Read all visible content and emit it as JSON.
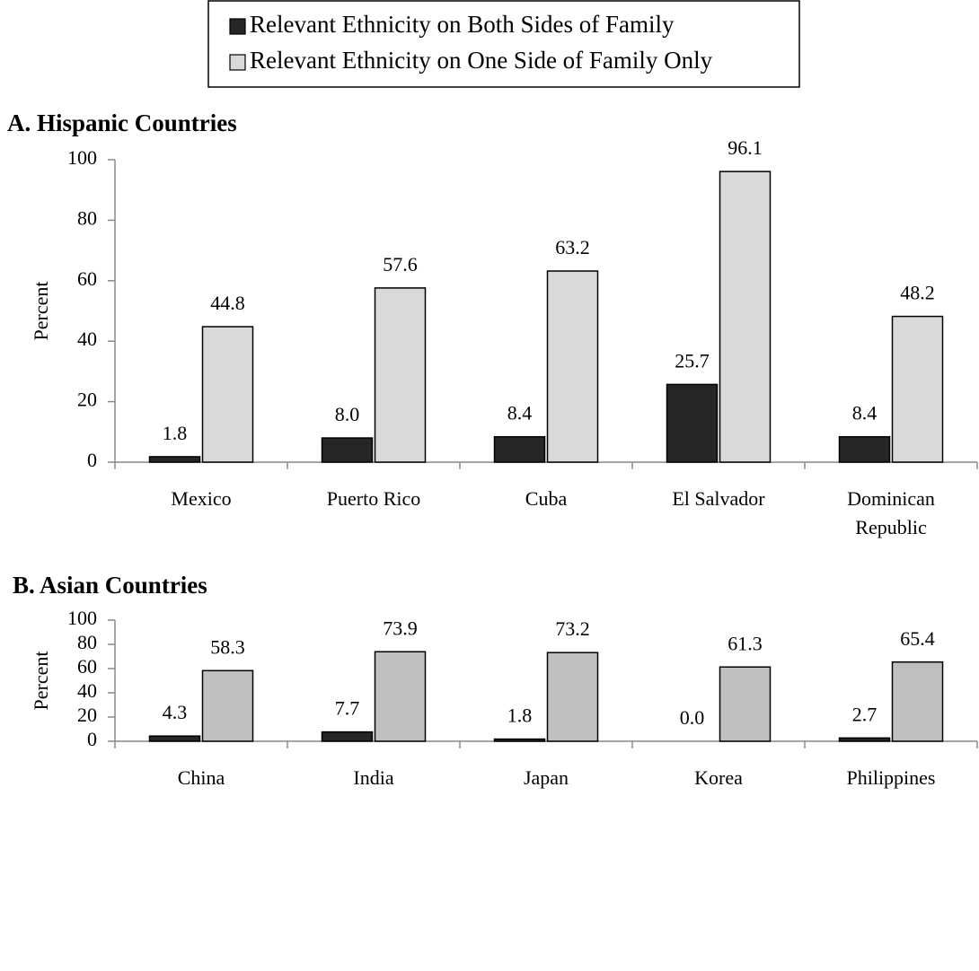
{
  "chart_data": [
    {
      "type": "bar",
      "title": "A. Hispanic Countries",
      "ylabel": "Percent",
      "categories": [
        "Mexico",
        "Puerto Rico",
        "Cuba",
        "El Salvador",
        "Dominican Republic"
      ],
      "series": [
        {
          "name": "Relevant Ethnicity on Both Sides of Family",
          "color": "#262626",
          "values": [
            1.8,
            8.0,
            8.4,
            25.7,
            8.4
          ],
          "value_labels": [
            "1.8",
            "8.0",
            "8.4",
            "25.7",
            "8.4"
          ]
        },
        {
          "name": "Relevant Ethnicity on One Side of Family Only",
          "color": "#d9d9d9",
          "values": [
            44.8,
            57.6,
            63.2,
            96.1,
            48.2
          ],
          "value_labels": [
            "44.8",
            "57.6",
            "63.2",
            "96.1",
            "48.2"
          ]
        }
      ],
      "ylim": [
        0,
        100
      ],
      "yticks": [
        0,
        20,
        40,
        60,
        80,
        100
      ]
    },
    {
      "type": "bar",
      "title": "B. Asian Countries",
      "ylabel": "Percent",
      "categories": [
        "China",
        "India",
        "Japan",
        "Korea",
        "Philippines"
      ],
      "series": [
        {
          "color": "#262626",
          "values": [
            4.3,
            7.7,
            1.8,
            0.0,
            2.7
          ],
          "value_labels": [
            "4.3",
            "7.7",
            "1.8",
            "0.0",
            "2.7"
          ]
        },
        {
          "color": "#bfbfbf",
          "values": [
            58.3,
            73.9,
            73.2,
            61.3,
            65.4
          ],
          "value_labels": [
            "58.3",
            "73.9",
            "73.2",
            "61.3",
            "65.4"
          ]
        }
      ],
      "ylim": [
        0,
        100
      ],
      "yticks": [
        0,
        20,
        40,
        60,
        80,
        100
      ]
    }
  ]
}
